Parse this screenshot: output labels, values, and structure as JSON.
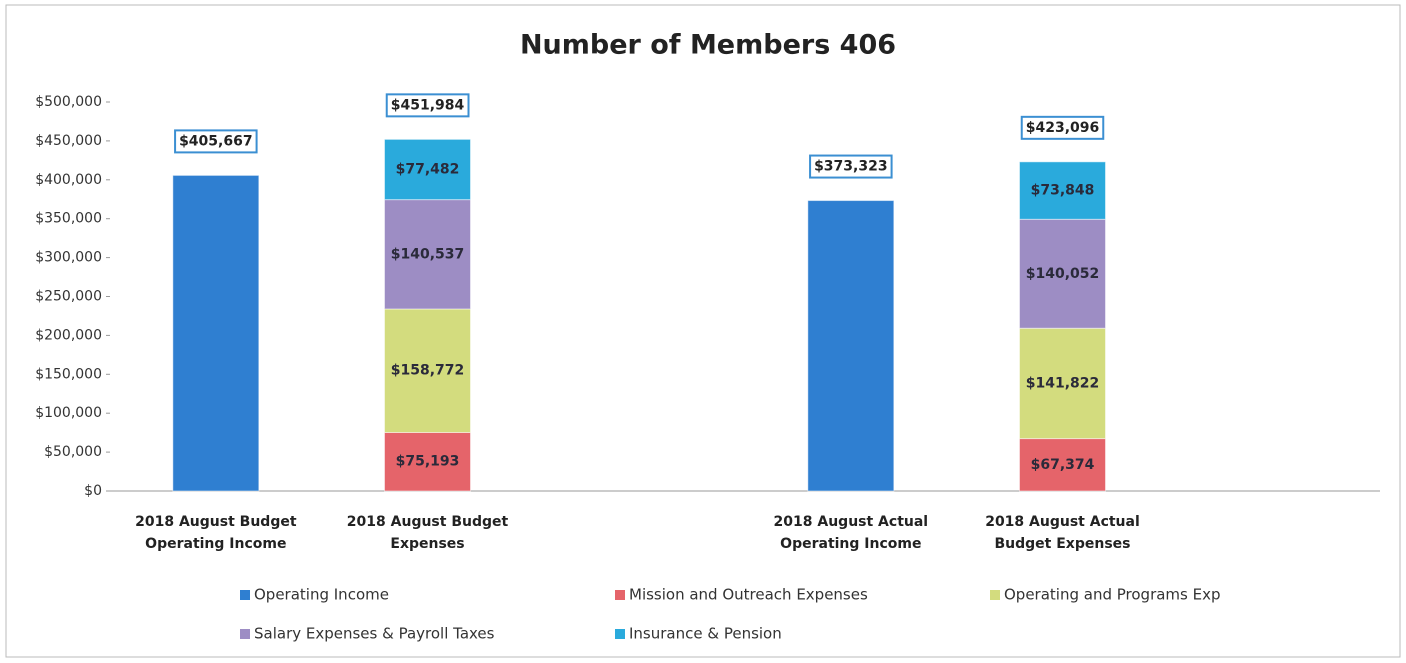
{
  "chart_data": {
    "type": "stacked_bar",
    "title": "Number of Members 406",
    "categories": [
      "2018 August Budget Operating Income",
      "2018 August Budget Expenses",
      null,
      "2018 August Actual Operating Income",
      "2018 August Actual Budget  Expenses",
      null
    ],
    "series": [
      {
        "name": "Operating Income",
        "color": "#2f7fd1",
        "values": [
          405667,
          null,
          null,
          373323,
          null,
          null
        ],
        "value_labels": [
          "$405,667",
          null,
          null,
          "$373,323",
          null,
          null
        ]
      },
      {
        "name": "Mission and Outreach Expenses",
        "color": "#e5646a",
        "values": [
          null,
          75193,
          null,
          null,
          67374,
          null
        ],
        "value_labels": [
          null,
          "$75,193",
          null,
          null,
          "$67,374",
          null
        ]
      },
      {
        "name": "Operating and Programs Exp",
        "color": "#d3dc7e",
        "values": [
          null,
          158772,
          null,
          null,
          141822,
          null
        ],
        "value_labels": [
          null,
          "$158,772",
          null,
          null,
          "$141,822",
          null
        ]
      },
      {
        "name": "Salary  Expenses & Payroll Taxes",
        "color": "#9d8dc4",
        "values": [
          null,
          140537,
          null,
          null,
          140052,
          null
        ],
        "value_labels": [
          null,
          "$140,537",
          null,
          null,
          "$140,052",
          null
        ]
      },
      {
        "name": "Insurance & Pension",
        "color": "#2aaadc",
        "values": [
          null,
          77482,
          null,
          null,
          73848,
          null
        ],
        "value_labels": [
          null,
          "$77,482",
          null,
          null,
          "$73,848",
          null
        ]
      }
    ],
    "totals": [
      null,
      451984,
      null,
      null,
      423096,
      null
    ],
    "total_labels": [
      null,
      "$451,984",
      null,
      null,
      "$423,096",
      null
    ],
    "ylim": [
      0,
      500000
    ],
    "yticks": [
      {
        "value": 0,
        "label": "$0"
      },
      {
        "value": 50000,
        "label": "$50,000"
      },
      {
        "value": 100000,
        "label": "$100,000"
      },
      {
        "value": 150000,
        "label": "$150,000"
      },
      {
        "value": 200000,
        "label": "$200,000"
      },
      {
        "value": 250000,
        "label": "$250,000"
      },
      {
        "value": 300000,
        "label": "$300,000"
      },
      {
        "value": 350000,
        "label": "$350,000"
      },
      {
        "value": 400000,
        "label": "$400,000"
      },
      {
        "value": 450000,
        "label": "$450,000"
      },
      {
        "value": 500000,
        "label": "$500,000"
      }
    ],
    "grid": false,
    "legend": "bottom"
  }
}
